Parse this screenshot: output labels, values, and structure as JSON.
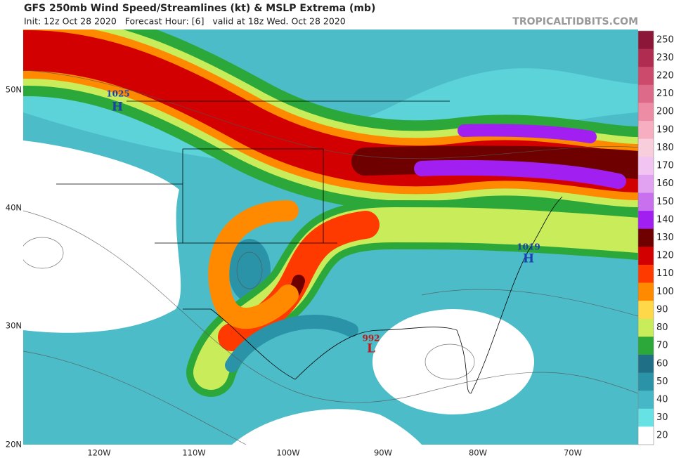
{
  "header": {
    "title": "GFS 250mb Wind Speed/Streamlines (kt) & MSLP Extrema (mb)",
    "subtitle": "Init: 12z Oct 28 2020   Forecast Hour: [6]   valid at 18z Wed. Oct 28 2020",
    "watermark": "TROPICALTIDBITS.COM"
  },
  "map": {
    "lat_labels": [
      "50N",
      "40N",
      "30N",
      "20N"
    ],
    "lon_labels": [
      "120W",
      "110W",
      "100W",
      "90W",
      "80W",
      "70W"
    ],
    "extrema": [
      {
        "value": "1025",
        "symbol": "H"
      },
      {
        "value": "1019",
        "symbol": "H"
      },
      {
        "value": "992",
        "symbol": "L"
      }
    ]
  },
  "colorbar": {
    "labels": [
      250,
      230,
      220,
      210,
      200,
      190,
      180,
      170,
      160,
      150,
      140,
      130,
      120,
      110,
      100,
      90,
      80,
      70,
      60,
      50,
      40,
      30,
      20
    ],
    "colors": [
      "#8c1638",
      "#b02c50",
      "#cc4a6c",
      "#de6a8a",
      "#ee8ca6",
      "#f6aec0",
      "#f8cedc",
      "#f2c4f2",
      "#e2a2f2",
      "#c870ee",
      "#a11ff0",
      "#6e0000",
      "#d20000",
      "#ff3a00",
      "#ff8a00",
      "#ffd84a",
      "#c8ec5a",
      "#2ca83a",
      "#1f6f86",
      "#2a93a8",
      "#45b7c6",
      "#66e2e4",
      "#ffffff"
    ]
  }
}
